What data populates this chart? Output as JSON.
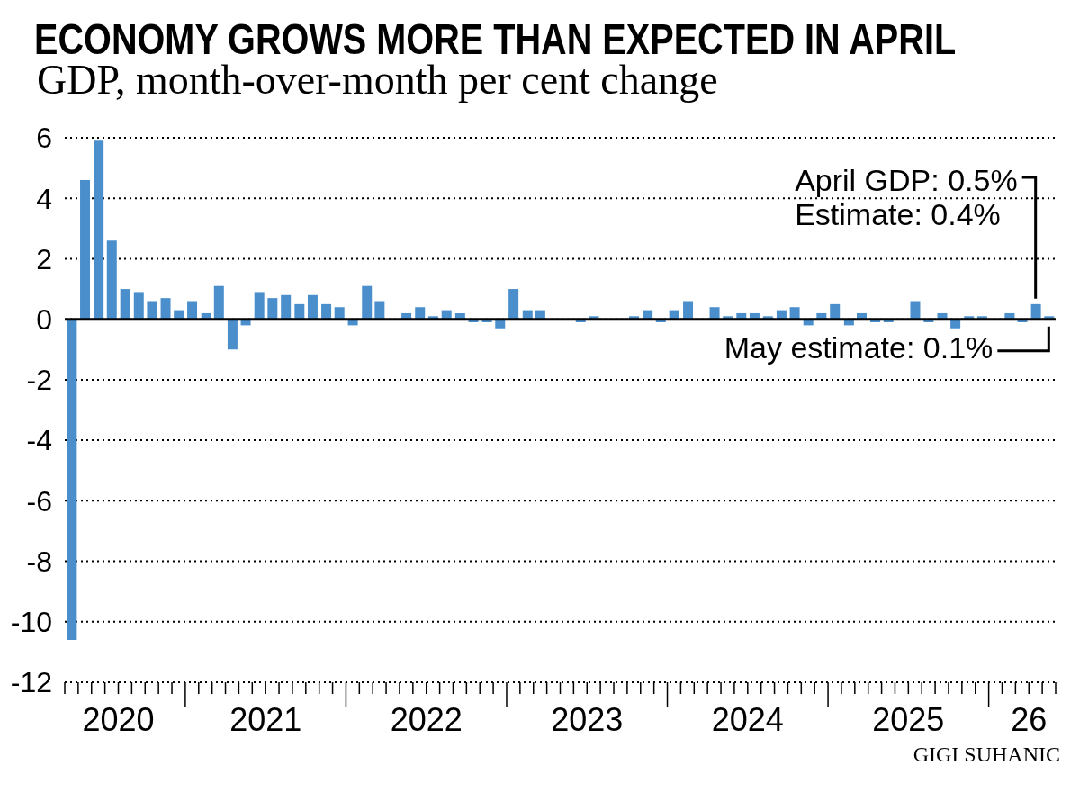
{
  "chart_data": {
    "type": "bar",
    "title": "ECONOMY GROWS MORE THAN EXPECTED IN APRIL",
    "subtitle": "GDP, month-over-month per cent change",
    "x": [
      "2020-04-16",
      "2020-05-16",
      "2020-06-16",
      "2020-07-16",
      "2020-08-16",
      "2020-09-16",
      "2020-10-16",
      "2020-11-16",
      "2020-12-16",
      "2021-01-16",
      "2021-02-16",
      "2021-03-16",
      "2021-04-16",
      "2021-05-16",
      "2021-06-16",
      "2021-07-16",
      "2021-08-16",
      "2021-09-16",
      "2021-10-16",
      "2021-11-16",
      "2021-12-16",
      "2022-01-16",
      "2022-02-16",
      "2022-03-16",
      "2022-04-16",
      "2022-05-16",
      "2022-06-16",
      "2022-07-16",
      "2022-08-16",
      "2022-09-16",
      "2022-10-16",
      "2022-11-16",
      "2022-12-16",
      "2023-01-16",
      "2023-02-16",
      "2023-03-16",
      "2023-04-16",
      "2023-05-16",
      "2023-06-16",
      "2023-07-16",
      "2023-08-16",
      "2023-09-16",
      "2023-10-16",
      "2023-11-16",
      "2023-12-16",
      "2024-01-16",
      "2024-02-16",
      "2024-03-16",
      "2024-04-16",
      "2024-05-16",
      "2024-06-16",
      "2024-07-16",
      "2024-08-16",
      "2024-09-16",
      "2024-10-16",
      "2024-11-16",
      "2024-12-16",
      "2025-01-16",
      "2025-02-16",
      "2025-03-16",
      "2025-04-16",
      "2025-05-16",
      "2025-06-16",
      "2025-07-16",
      "2025-08-16",
      "2025-09-16",
      "2025-10-16",
      "2025-11-16",
      "2025-12-16",
      "2026-01-16",
      "2026-02-16",
      "2026-03-16",
      "2026-04-16",
      "2026-05-16"
    ],
    "values": [
      -10.6,
      4.6,
      5.9,
      2.6,
      1.0,
      0.9,
      0.6,
      0.7,
      0.3,
      0.6,
      0.2,
      1.1,
      -1.0,
      -0.2,
      0.9,
      0.7,
      0.8,
      0.5,
      0.8,
      0.5,
      0.4,
      -0.2,
      1.1,
      0.6,
      0,
      0.2,
      0.4,
      0.1,
      0.3,
      0.2,
      -0.1,
      -0.1,
      -0.3,
      1.0,
      0.3,
      0.3,
      0,
      0,
      -0.1,
      0.1,
      0,
      0,
      0.1,
      0.3,
      -0.1,
      0.3,
      0.6,
      0,
      0.4,
      0.1,
      0.2,
      0.2,
      0.1,
      0.3,
      0.4,
      -0.2,
      0.2,
      0.5,
      -0.2,
      0.2,
      -0.1,
      -0.1,
      0,
      0.6,
      -0.1,
      0.2,
      -0.3,
      0.1,
      0.1,
      0,
      0.2,
      -0.1,
      0.5,
      0.1
    ],
    "color": "#4a8fcc",
    "xlim": [
      "2020-04-01",
      "2026-06-01"
    ],
    "xticks": [
      {
        "value": "2020-04-01",
        "label": null
      },
      {
        "value": "2020-05-01",
        "label": null
      },
      {
        "value": "2020-06-01",
        "label": null
      },
      {
        "value": "2020-07-01",
        "label": null
      },
      {
        "value": "2020-08-01",
        "label": "2020"
      },
      {
        "value": "2020-09-01",
        "label": null
      },
      {
        "value": "2020-10-01",
        "label": null
      },
      {
        "value": "2020-11-01",
        "label": null
      },
      {
        "value": "2020-12-01",
        "label": null
      },
      {
        "value": "2021-01-01",
        "label": null
      },
      {
        "value": "2021-02-01",
        "label": null
      },
      {
        "value": "2021-03-01",
        "label": null
      },
      {
        "value": "2021-04-01",
        "label": null
      },
      {
        "value": "2021-05-01",
        "label": null
      },
      {
        "value": "2021-06-01",
        "label": null
      },
      {
        "value": "2021-07-01",
        "label": "2021"
      },
      {
        "value": "2021-08-01",
        "label": null
      },
      {
        "value": "2021-09-01",
        "label": null
      },
      {
        "value": "2021-10-01",
        "label": null
      },
      {
        "value": "2021-11-01",
        "label": null
      },
      {
        "value": "2021-12-01",
        "label": null
      },
      {
        "value": "2022-01-01",
        "label": null
      },
      {
        "value": "2022-02-01",
        "label": null
      },
      {
        "value": "2022-03-01",
        "label": null
      },
      {
        "value": "2022-04-01",
        "label": null
      },
      {
        "value": "2022-05-01",
        "label": null
      },
      {
        "value": "2022-06-01",
        "label": null
      },
      {
        "value": "2022-07-01",
        "label": "2022"
      },
      {
        "value": "2022-08-01",
        "label": null
      },
      {
        "value": "2022-09-01",
        "label": null
      },
      {
        "value": "2022-10-01",
        "label": null
      },
      {
        "value": "2022-11-01",
        "label": null
      },
      {
        "value": "2022-12-01",
        "label": null
      },
      {
        "value": "2023-01-01",
        "label": null
      },
      {
        "value": "2023-02-01",
        "label": null
      },
      {
        "value": "2023-03-01",
        "label": null
      },
      {
        "value": "2023-04-01",
        "label": null
      },
      {
        "value": "2023-05-01",
        "label": null
      },
      {
        "value": "2023-06-01",
        "label": null
      },
      {
        "value": "2023-07-01",
        "label": "2023"
      },
      {
        "value": "2023-08-01",
        "label": null
      },
      {
        "value": "2023-09-01",
        "label": null
      },
      {
        "value": "2023-10-01",
        "label": null
      },
      {
        "value": "2023-11-01",
        "label": null
      },
      {
        "value": "2023-12-01",
        "label": null
      },
      {
        "value": "2024-01-01",
        "label": null
      },
      {
        "value": "2024-02-01",
        "label": null
      },
      {
        "value": "2024-03-01",
        "label": null
      },
      {
        "value": "2024-04-01",
        "label": null
      },
      {
        "value": "2024-05-01",
        "label": null
      },
      {
        "value": "2024-06-01",
        "label": null
      },
      {
        "value": "2024-07-01",
        "label": "2024"
      },
      {
        "value": "2024-08-01",
        "label": null
      },
      {
        "value": "2024-09-01",
        "label": null
      },
      {
        "value": "2024-10-01",
        "label": null
      },
      {
        "value": "2024-11-01",
        "label": null
      },
      {
        "value": "2024-12-01",
        "label": null
      },
      {
        "value": "2025-01-01",
        "label": null
      },
      {
        "value": "2025-02-01",
        "label": null
      },
      {
        "value": "2025-03-01",
        "label": null
      },
      {
        "value": "2025-04-01",
        "label": null
      },
      {
        "value": "2025-05-01",
        "label": null
      },
      {
        "value": "2025-06-01",
        "label": null
      },
      {
        "value": "2025-07-01",
        "label": "2025"
      },
      {
        "value": "2025-08-01",
        "label": null
      },
      {
        "value": "2025-09-01",
        "label": null
      },
      {
        "value": "2025-10-01",
        "label": null
      },
      {
        "value": "2025-11-01",
        "label": null
      },
      {
        "value": "2025-12-01",
        "label": null
      },
      {
        "value": "2026-01-01",
        "label": null
      },
      {
        "value": "2026-02-01",
        "label": null
      },
      {
        "value": "2026-03-01",
        "label": null
      },
      {
        "value": "2026-04-01",
        "label": "26"
      },
      {
        "value": "2026-05-01",
        "label": null
      },
      {
        "value": "2026-06-01",
        "label": null
      }
    ],
    "ylim": [
      -12,
      6
    ],
    "yticks": [
      -12,
      -10,
      -8,
      -6,
      -4,
      -2,
      0,
      2,
      4,
      6
    ],
    "grid": "y",
    "ref_lines": [
      {
        "axis": "y",
        "value": 0,
        "color": "#000000"
      }
    ],
    "annotations": [
      {
        "text": "April GDP: 0.5%",
        "x": "2026-04-16",
        "y": 0.5
      },
      "Estimate: 0.4%",
      {
        "text": "May estimate: 0.1%",
        "x": "2026-05-16",
        "y": 0.1
      },
      "GIGI SUHANIC"
    ]
  }
}
